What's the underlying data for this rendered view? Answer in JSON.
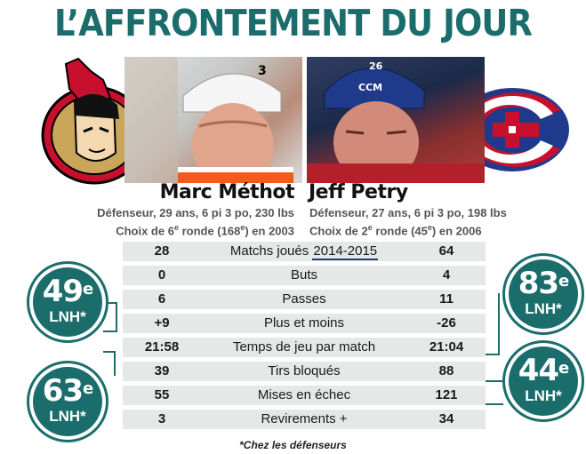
{
  "title": "L’AFFRONTEMENT DU JOUR",
  "left_player": {
    "name": "Marc Méthot",
    "info_line1": "Défenseur, 29 ans, 6 pi 3 po, 230 lbs",
    "info_line2_pre": "Choix de 6",
    "info_line2_sup": "e",
    "info_line2_mid": " ronde (168",
    "info_line2_sup2": "e",
    "info_line2_post": ") en 2003",
    "jersey": "3"
  },
  "right_player": {
    "name": "Jeff Petry",
    "info_line1": "Défenseur, 27 ans, 6 pi 3 po, 198 lbs",
    "info_line2_pre": "Choix de 2",
    "info_line2_sup": "e",
    "info_line2_mid": " ronde (45",
    "info_line2_sup2": "e",
    "info_line2_post": ") en 2006",
    "jersey": "26",
    "helmet_brand": "CCM"
  },
  "stats": [
    {
      "left": "28",
      "label": "Matchs joués ",
      "year": "2014-2015",
      "right": "64"
    },
    {
      "left": "0",
      "label": "Buts",
      "right": "4"
    },
    {
      "left": "6",
      "label": "Passes",
      "right": "11"
    },
    {
      "left": "+9",
      "label": "Plus et moins",
      "right": "-26"
    },
    {
      "left": "21:58",
      "label": "Temps de jeu par match",
      "right": "21:04"
    },
    {
      "left": "39",
      "label": "Tirs bloqués",
      "right": "88"
    },
    {
      "left": "55",
      "label": "Mises en échec",
      "right": "121"
    },
    {
      "left": "3",
      "label": "Revirements +",
      "right": "34"
    }
  ],
  "badges": {
    "left_top": {
      "rank": "49",
      "sup": "e",
      "lnh": "LNH*"
    },
    "left_bottom": {
      "rank": "63",
      "sup": "e",
      "lnh": "LNH*"
    },
    "right_top": {
      "rank": "83",
      "sup": "e",
      "lnh": "LNH*"
    },
    "right_bottom": {
      "rank": "44",
      "sup": "e",
      "lnh": "LNH*"
    }
  },
  "footnote": "*Chez les défenseurs",
  "colors": {
    "accent": "#1b6d6c",
    "senators_red": "#c8102e",
    "canadiens_blue": "#1f3a8a"
  }
}
